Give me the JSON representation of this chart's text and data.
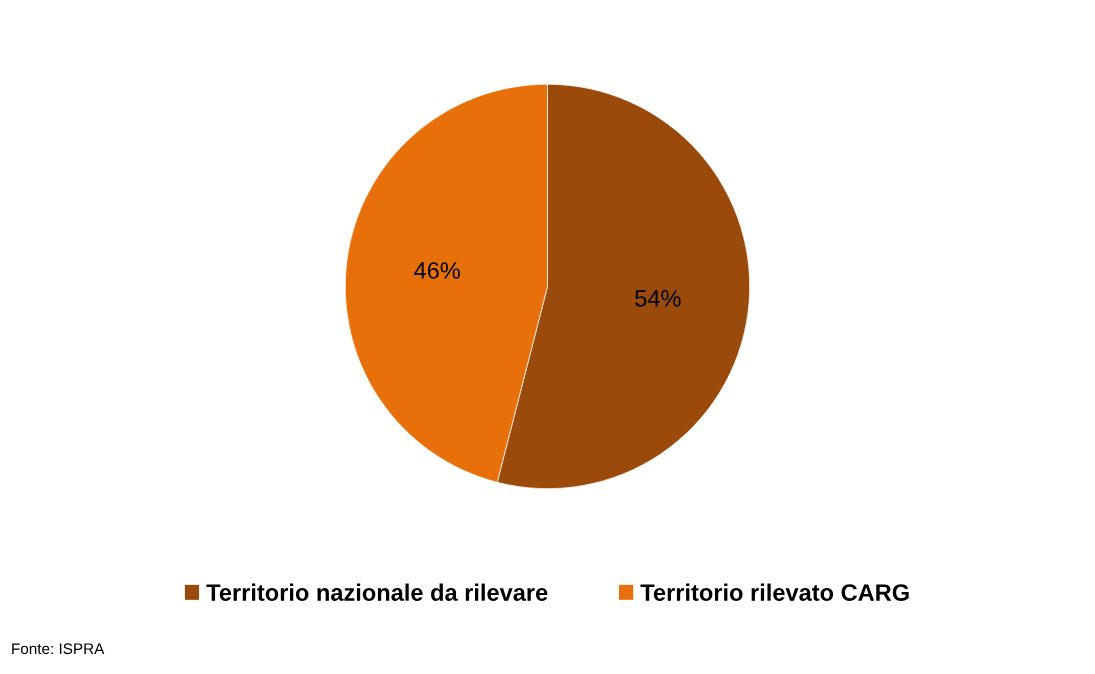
{
  "chart_data": {
    "type": "pie",
    "categories": [
      "Territorio nazionale da rilevare",
      "Territorio rilevato CARG"
    ],
    "values": [
      54,
      46
    ],
    "value_labels": [
      "54%",
      "46%"
    ],
    "colors": [
      "#9a4a0a",
      "#e8700a"
    ],
    "legend": "bottom",
    "annotations": [
      "Fonte: ISPRA"
    ]
  }
}
